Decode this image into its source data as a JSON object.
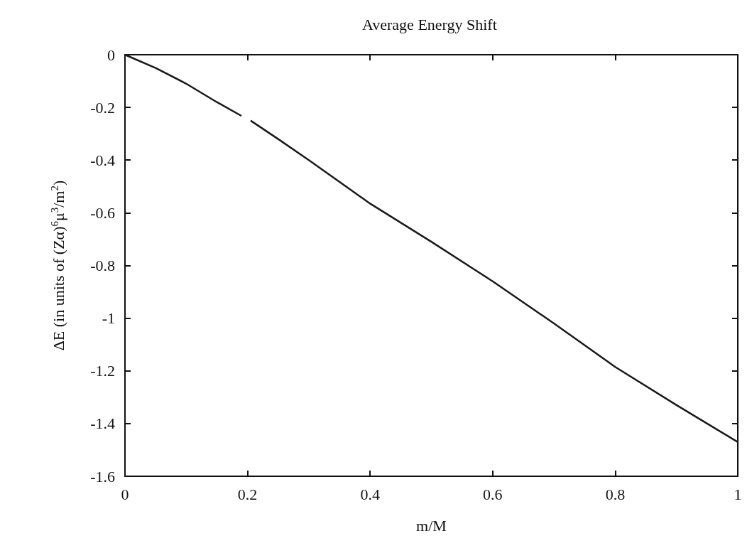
{
  "chart_data": {
    "type": "line",
    "title": "Average Energy Shift",
    "xlabel": "m/M",
    "ylabel": "ΔE (in units of (Zα)$^{6}$μ$^{3}$/m$^{2}$)",
    "x": [
      0,
      0.05,
      0.1,
      0.15,
      0.19,
      0.195,
      0.205,
      0.25,
      0.3,
      0.4,
      0.5,
      0.6,
      0.7,
      0.8,
      0.9,
      1
    ],
    "series": [
      {
        "color": "#1a1a1a",
        "values": [
          0,
          -0.05,
          -0.11,
          -0.18,
          -0.232,
          null,
          -0.25,
          -0.32,
          -0.4,
          -0.565,
          -0.71,
          -0.86,
          -1.02,
          -1.185,
          -1.33,
          -1.47
        ]
      }
    ],
    "xlim": [
      0,
      1
    ],
    "xticks": [
      0,
      0.2,
      0.4,
      0.6,
      0.8,
      1
    ],
    "ylim": [
      -1.6,
      0
    ],
    "yticks": [
      -1.6,
      -1.4,
      -1.2,
      -1,
      -0.8,
      -0.6,
      -0.4,
      -0.2,
      0
    ],
    "grid": false,
    "marker": "none",
    "line_style": "solid"
  }
}
